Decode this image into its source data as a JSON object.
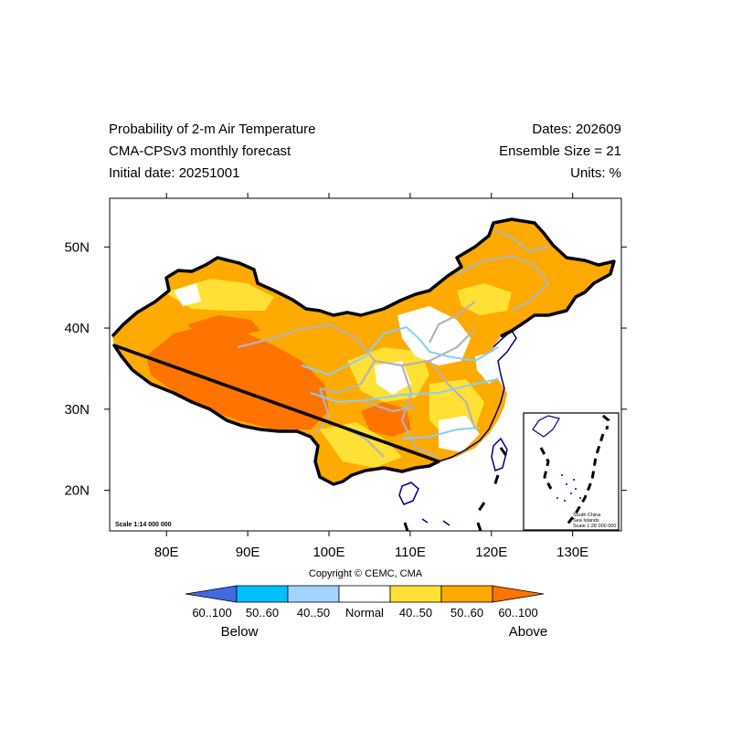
{
  "titles": {
    "line1_left": "Probability of 2-m Air Temperature",
    "line2_left": "CMA-CPSv3 monthly forecast",
    "line3_left": "Initial date: 20251001",
    "line1_right": "Dates: 202609",
    "line2_right": "Ensemble Size = 21",
    "line3_right": "Units: %"
  },
  "axes": {
    "lon_ticks": [
      {
        "value": 80,
        "label": "80E"
      },
      {
        "value": 90,
        "label": "90E"
      },
      {
        "value": 100,
        "label": "100E"
      },
      {
        "value": 110,
        "label": "110E"
      },
      {
        "value": 120,
        "label": "120E"
      },
      {
        "value": 130,
        "label": "130E"
      }
    ],
    "lat_ticks": [
      {
        "value": 20,
        "label": "20N"
      },
      {
        "value": 30,
        "label": "30N"
      },
      {
        "value": 40,
        "label": "40N"
      },
      {
        "value": 50,
        "label": "50N"
      }
    ],
    "lon_range": [
      73,
      136
    ],
    "lat_range": [
      15,
      56
    ]
  },
  "scale_text": "Scale 1:14 000 000",
  "inset": {
    "line1": "South China",
    "line2": "Sea Islands",
    "line3": "Scale 1:28 000 000"
  },
  "copyright": "Copyright © CEMC, CMA",
  "legend": {
    "below_label": "Below",
    "above_label": "Above",
    "categories": [
      {
        "label": "60..100",
        "color": "#4169e1"
      },
      {
        "label": "50..60",
        "color": "#00bfff"
      },
      {
        "label": "40..50",
        "color": "#a5d3ff"
      },
      {
        "label": "Normal",
        "color": "#ffffff"
      },
      {
        "label": "40..50",
        "color": "#ffe135"
      },
      {
        "label": "50..60",
        "color": "#ffaa00"
      },
      {
        "label": "60..100",
        "color": "#ff7300"
      }
    ]
  },
  "colors": {
    "border": "#000000",
    "provinces": "#b4b4b4",
    "rivers": "#87cefa",
    "coast": "#00008b",
    "above_50_60": "#ffaa00",
    "above_60_100": "#ff7300",
    "above_40_50": "#ffe135"
  }
}
